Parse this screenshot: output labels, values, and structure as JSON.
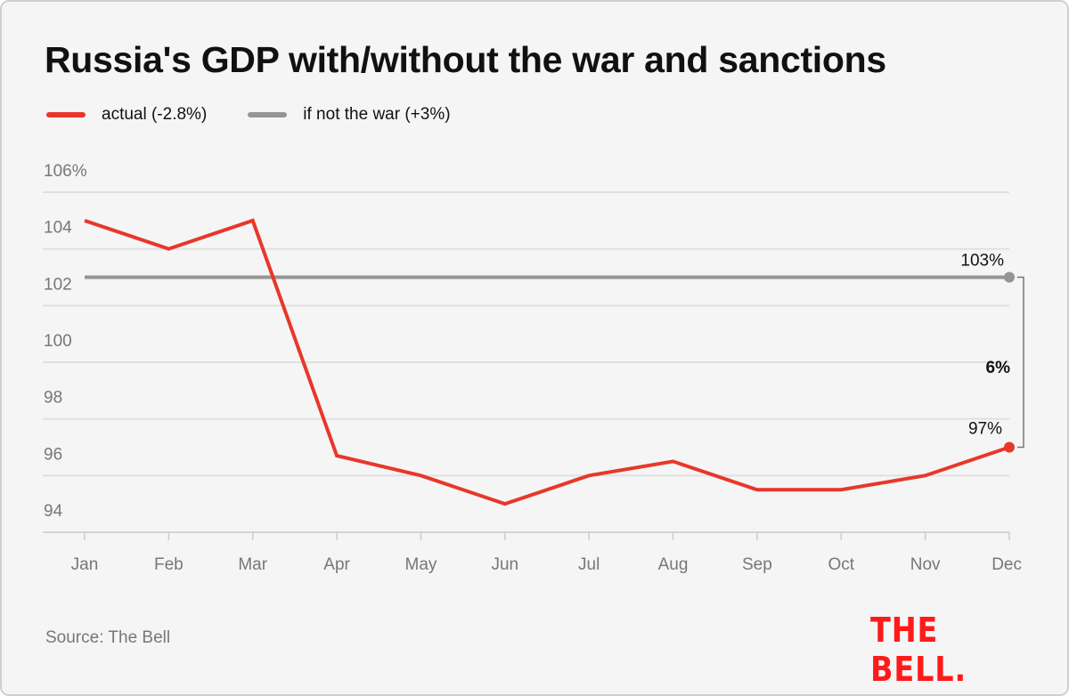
{
  "chart_data": {
    "type": "line",
    "title": "Russia's GDP with/without the war and sanctions",
    "categories": [
      "Jan",
      "Feb",
      "Mar",
      "Apr",
      "May",
      "Jun",
      "Jul",
      "Aug",
      "Sep",
      "Oct",
      "Nov",
      "Dec"
    ],
    "series": [
      {
        "name": "actual (-2.8%)",
        "color": "#e8372a",
        "values": [
          105,
          104,
          105,
          96.7,
          96,
          95,
          96,
          96.5,
          95.5,
          95.5,
          96,
          97
        ]
      },
      {
        "name": "if not the war (+3%)",
        "color": "#959595",
        "values": [
          103,
          103,
          103,
          103,
          103,
          103,
          103,
          103,
          103,
          103,
          103,
          103
        ]
      }
    ],
    "yticks": [
      106,
      104,
      102,
      100,
      98,
      96,
      94
    ],
    "ytick_labels": [
      "106%",
      "104",
      "102",
      "100",
      "98",
      "96",
      "94"
    ],
    "ylim": [
      94,
      106
    ],
    "grid": true,
    "legend_position": "top-left",
    "annotations": {
      "gray_end": "103%",
      "red_end": "97%",
      "gap": "6%"
    },
    "source": "Source: The Bell",
    "logo": "THE BELL."
  }
}
